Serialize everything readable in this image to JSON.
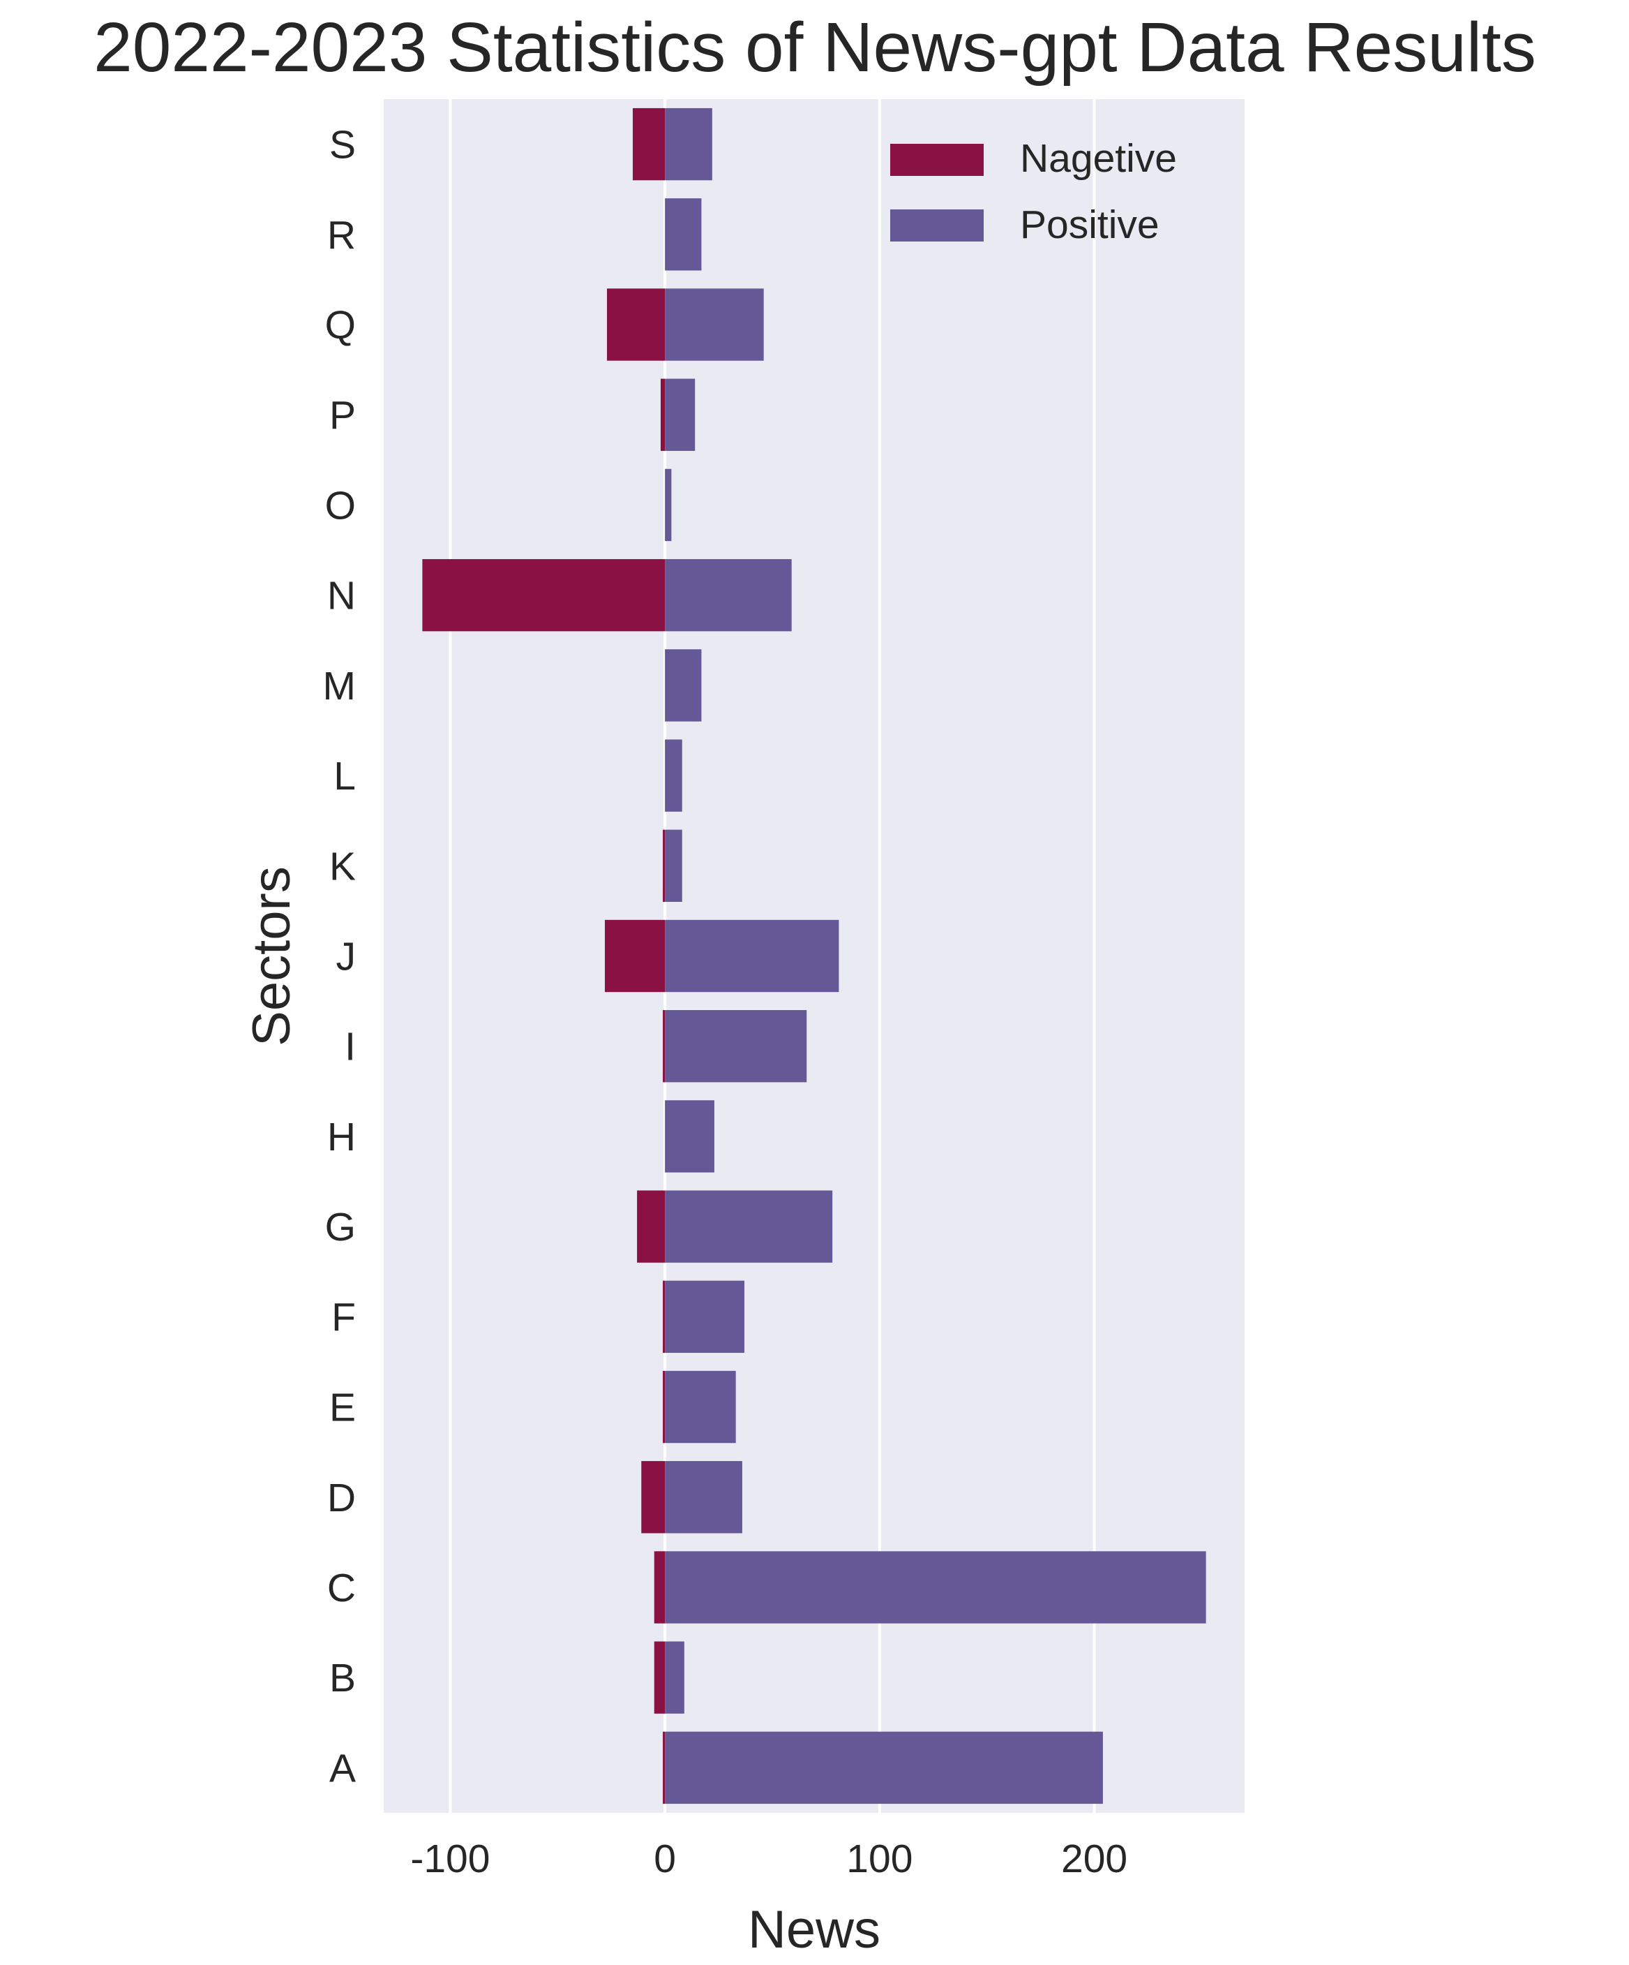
{
  "chart_data": {
    "type": "bar",
    "orientation": "horizontal",
    "title": "2022-2023 Statistics of News-gpt Data Results",
    "xlabel": "News",
    "ylabel": "Sectors",
    "xlim": [
      -131,
      270
    ],
    "xticks": [
      -100,
      0,
      100,
      200
    ],
    "xtick_labels": [
      "-100",
      "0",
      "100",
      "200"
    ],
    "grid": "x",
    "legend_position": "top-right",
    "categories": [
      "S",
      "R",
      "Q",
      "P",
      "O",
      "N",
      "M",
      "L",
      "K",
      "J",
      "I",
      "H",
      "G",
      "F",
      "E",
      "D",
      "C",
      "B",
      "A"
    ],
    "series": [
      {
        "name": "Nagetive",
        "color": "#891242",
        "values": [
          -15,
          0,
          -27,
          -2,
          0,
          -113,
          0,
          0,
          -1,
          -28,
          -1,
          0,
          -13,
          -1,
          -1,
          -11,
          -5,
          -5,
          -1
        ]
      },
      {
        "name": "Positive",
        "color": "#645996",
        "values": [
          22,
          17,
          46,
          14,
          3,
          59,
          17,
          8,
          8,
          81,
          66,
          23,
          78,
          37,
          33,
          36,
          252,
          9,
          204
        ]
      }
    ],
    "background_color": "#eaeaf2",
    "grid_color": "#ffffff"
  }
}
